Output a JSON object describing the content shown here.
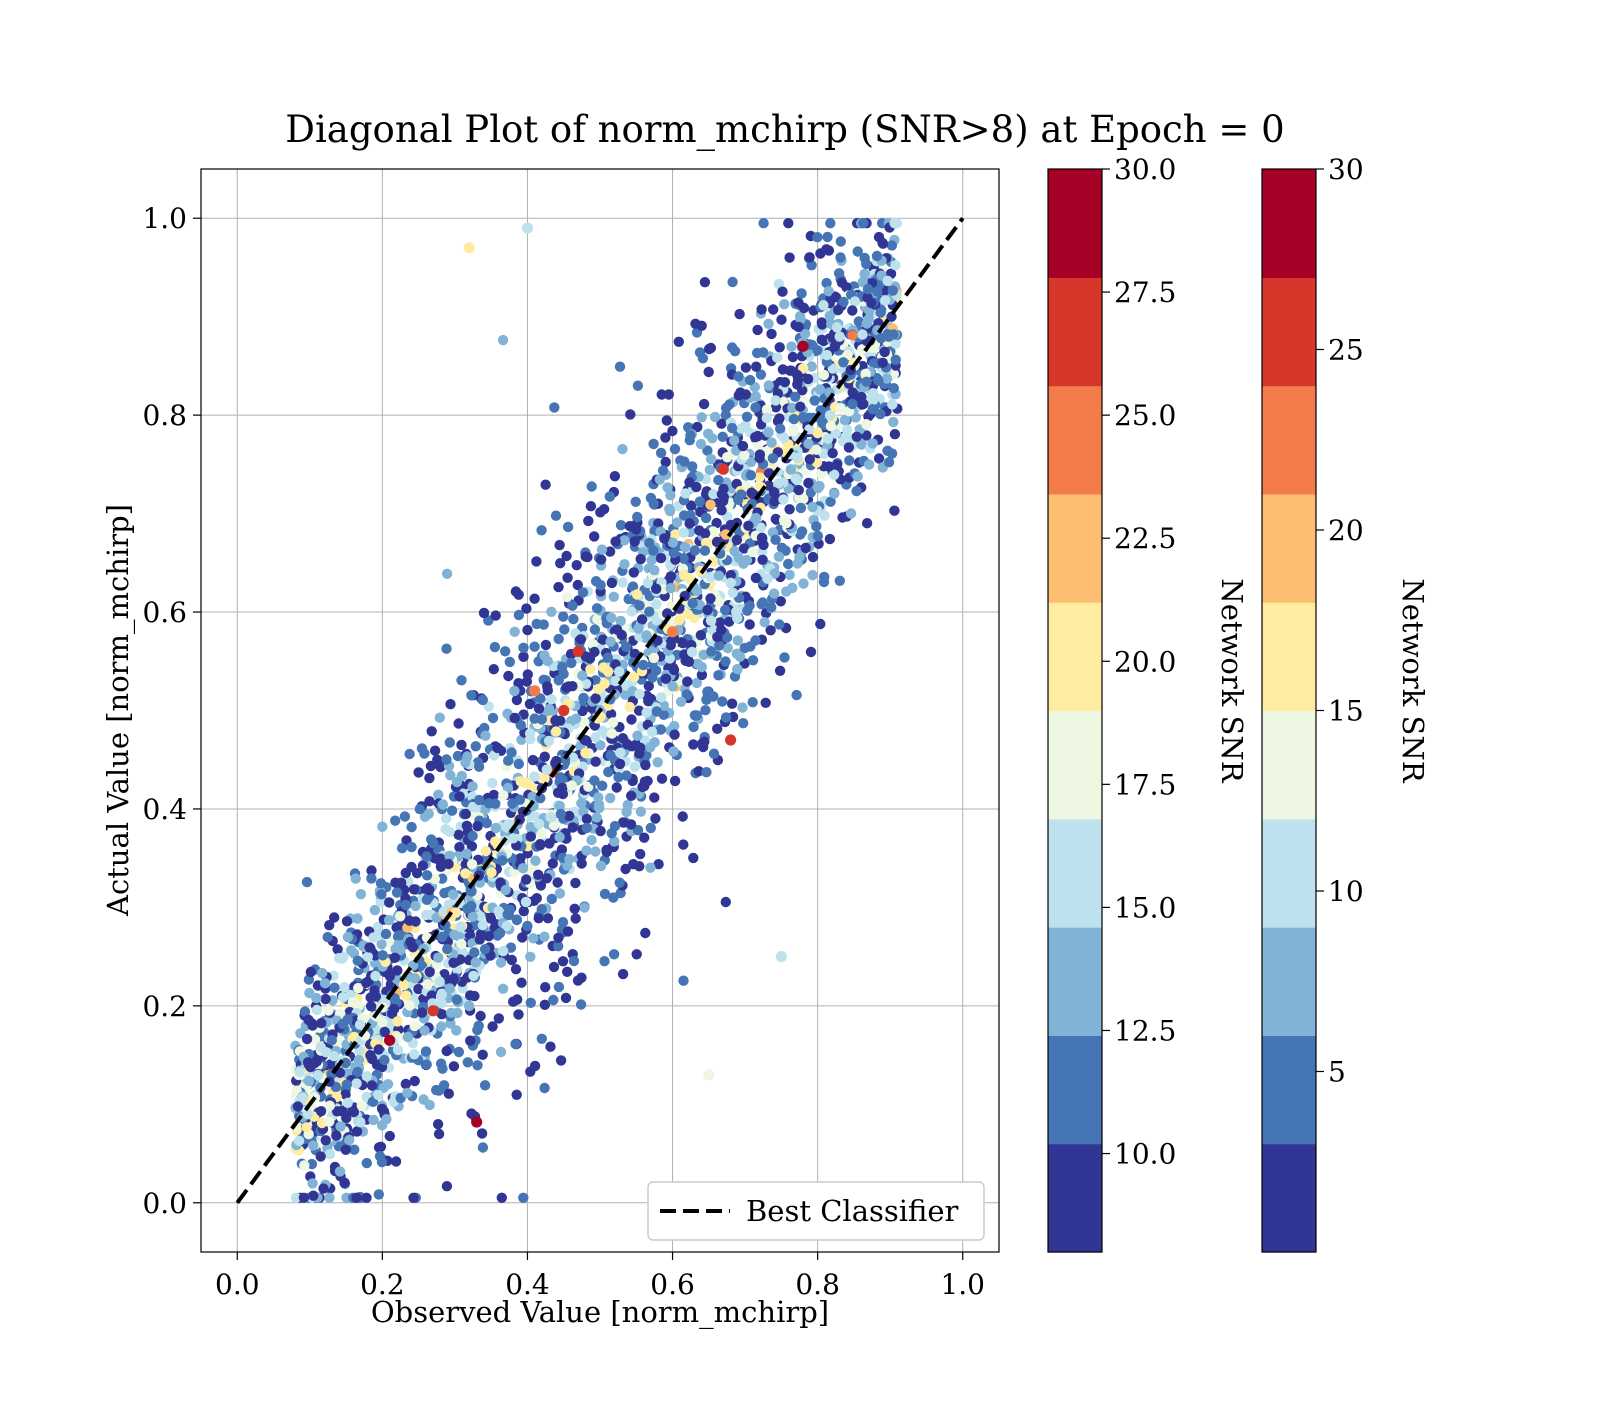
{
  "chart_data": {
    "type": "scatter",
    "title": "Diagonal Plot of norm_mchirp (SNR>8) at Epoch = 0",
    "xlabel": "Observed Value [norm_mchirp]",
    "ylabel": "Actual Value [norm_mchirp]",
    "xlim": [
      -0.05,
      1.05
    ],
    "ylim": [
      -0.05,
      1.05
    ],
    "xticks": [
      "0.0",
      "0.2",
      "0.4",
      "0.6",
      "0.8",
      "1.0"
    ],
    "yticks": [
      "0.0",
      "0.2",
      "0.4",
      "0.6",
      "0.8",
      "1.0"
    ],
    "grid": true,
    "color_by": "Network SNR",
    "reference_line": {
      "name": "Best Classifier",
      "style": "dashed",
      "color": "#000000",
      "points": [
        [
          0.0,
          0.0
        ],
        [
          1.0,
          1.0
        ]
      ]
    },
    "legend": {
      "placement": "lower-right",
      "entries": [
        "Best Classifier"
      ]
    },
    "highlighted_points": [
      {
        "x": 0.78,
        "y": 0.87,
        "snr": 30
      },
      {
        "x": 0.21,
        "y": 0.165,
        "snr": 30
      },
      {
        "x": 0.33,
        "y": 0.082,
        "snr": 30
      },
      {
        "x": 0.47,
        "y": 0.56,
        "snr": 27
      },
      {
        "x": 0.45,
        "y": 0.5,
        "snr": 27
      },
      {
        "x": 0.67,
        "y": 0.745,
        "snr": 26
      },
      {
        "x": 0.68,
        "y": 0.47,
        "snr": 26
      },
      {
        "x": 0.27,
        "y": 0.195,
        "snr": 26
      },
      {
        "x": 0.41,
        "y": 0.52,
        "snr": 25
      },
      {
        "x": 0.6,
        "y": 0.58,
        "snr": 24
      },
      {
        "x": 0.32,
        "y": 0.97,
        "snr": 20
      },
      {
        "x": 0.75,
        "y": 0.25,
        "snr": 15
      },
      {
        "x": 0.4,
        "y": 0.99,
        "snr": 15
      },
      {
        "x": 0.65,
        "y": 0.13,
        "snr": 18
      }
    ],
    "scatter_model": {
      "count": 3200,
      "x_range": [
        0.08,
        0.91
      ],
      "y_residual_sd_min": 0.05,
      "y_residual_sd_max": 0.1,
      "snr_range": [
        8,
        30
      ]
    },
    "colorbars": [
      {
        "label": "Network SNR",
        "vmin": 8,
        "vmax": 30,
        "ticks": [
          {
            "value": 10.0,
            "label": "10.0"
          },
          {
            "value": 12.5,
            "label": "12.5"
          },
          {
            "value": 15.0,
            "label": "15.0"
          },
          {
            "value": 17.5,
            "label": "17.5"
          },
          {
            "value": 20.0,
            "label": "20.0"
          },
          {
            "value": 22.5,
            "label": "22.5"
          },
          {
            "value": 25.0,
            "label": "25.0"
          },
          {
            "value": 27.5,
            "label": "27.5"
          },
          {
            "value": 30.0,
            "label": "30.0"
          }
        ]
      },
      {
        "label": "Network SNR",
        "vmin": 0,
        "vmax": 30,
        "ticks": [
          {
            "value": 5,
            "label": "5"
          },
          {
            "value": 10,
            "label": "10"
          },
          {
            "value": 15,
            "label": "15"
          },
          {
            "value": 20,
            "label": "20"
          },
          {
            "value": 25,
            "label": "25"
          },
          {
            "value": 30,
            "label": "30"
          }
        ]
      }
    ],
    "colormap": [
      "#313695",
      "#4575b4",
      "#80b3d6",
      "#bde2ee",
      "#eef7e2",
      "#feeca0",
      "#fdbe71",
      "#f47c4b",
      "#d7362a",
      "#a50026"
    ]
  }
}
